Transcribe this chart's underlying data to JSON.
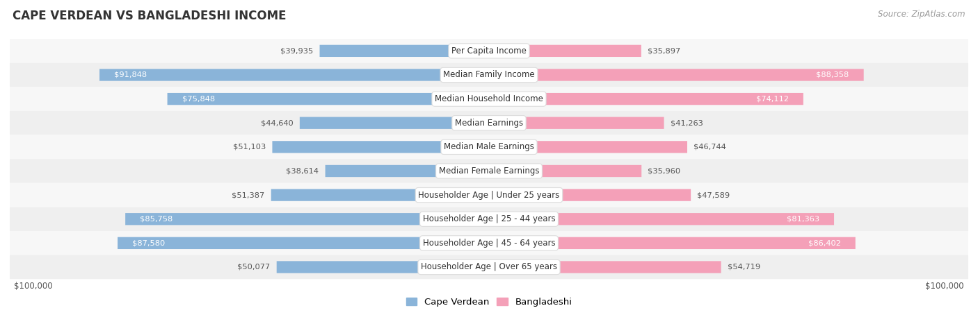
{
  "title": "CAPE VERDEAN VS BANGLADESHI INCOME",
  "source": "Source: ZipAtlas.com",
  "categories": [
    "Per Capita Income",
    "Median Family Income",
    "Median Household Income",
    "Median Earnings",
    "Median Male Earnings",
    "Median Female Earnings",
    "Householder Age | Under 25 years",
    "Householder Age | 25 - 44 years",
    "Householder Age | 45 - 64 years",
    "Householder Age | Over 65 years"
  ],
  "cape_verdean": [
    39935,
    91848,
    75848,
    44640,
    51103,
    38614,
    51387,
    85758,
    87580,
    50077
  ],
  "bangladeshi": [
    35897,
    88358,
    74112,
    41263,
    46744,
    35960,
    47589,
    81363,
    86402,
    54719
  ],
  "max_value": 100000,
  "cape_verdean_color": "#8ab4d9",
  "cape_verdean_dark_color": "#5b8ec4",
  "bangladeshi_color": "#f4a0b8",
  "bangladeshi_dark_color": "#e8607e",
  "label_color_dark": "#ffffff",
  "label_color_light": "#555555",
  "row_bg_odd": "#f7f7f7",
  "row_bg_even": "#efefef",
  "center_label_bg": "#ffffff",
  "threshold_dark_label": 62000,
  "legend_cape_verdean": "Cape Verdean",
  "legend_bangladeshi": "Bangladeshi"
}
